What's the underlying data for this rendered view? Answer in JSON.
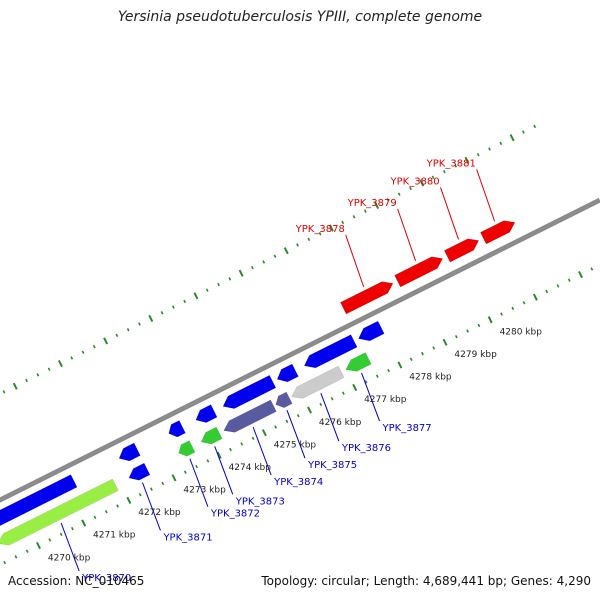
{
  "title": "Yersinia pseudotuberculosis YPIII, complete genome",
  "footer": {
    "accession": "Accession: NC_010465",
    "stats": "Topology: circular; Length: 4,689,441 bp; Genes: 4,290"
  },
  "colors": {
    "forward_strand": "#ee0000",
    "reverse_strand": "#0000ee",
    "green_gene": "#33cc33",
    "lime_gene": "#99ee44",
    "purple_gene": "#5a5aa0",
    "gray_gene": "#cccccc",
    "backbone": "#8c8c8c",
    "ticks": "#2a8a2a",
    "forward_label": "#dd0000",
    "reverse_label": "#0000cc"
  },
  "kbp_ticks": [
    {
      "label": "4270 kbp",
      "kbp": 4270
    },
    {
      "label": "4271 kbp",
      "kbp": 4271
    },
    {
      "label": "4272 kbp",
      "kbp": 4272
    },
    {
      "label": "4273 kbp",
      "kbp": 4273
    },
    {
      "label": "4274 kbp",
      "kbp": 4274
    },
    {
      "label": "4275 kbp",
      "kbp": 4275
    },
    {
      "label": "4276 kbp",
      "kbp": 4276
    },
    {
      "label": "4277 kbp",
      "kbp": 4277
    },
    {
      "label": "4278 kbp",
      "kbp": 4278
    },
    {
      "label": "4279 kbp",
      "kbp": 4279
    },
    {
      "label": "4280 kbp",
      "kbp": 4280
    }
  ],
  "genes": [
    {
      "name": "YPK_3870",
      "strand": "reverse",
      "color_key": "lime_gene",
      "start_kbp": 4269.3,
      "end_kbp": 4271.9
    },
    {
      "name": "YPK_3871",
      "strand": "reverse",
      "color_key": "reverse_strand",
      "start_kbp": 4272.2,
      "end_kbp": 4272.6
    },
    {
      "name": "YPK_3872",
      "strand": "reverse",
      "color_key": "green_gene",
      "start_kbp": 4273.3,
      "end_kbp": 4273.6
    },
    {
      "name": "YPK_3873",
      "strand": "reverse",
      "color_key": "green_gene",
      "start_kbp": 4273.8,
      "end_kbp": 4274.2
    },
    {
      "name": "YPK_3874",
      "strand": "reverse",
      "color_key": "purple_gene",
      "start_kbp": 4274.3,
      "end_kbp": 4275.4
    },
    {
      "name": "YPK_3875",
      "strand": "reverse",
      "color_key": "purple_gene",
      "start_kbp": 4275.45,
      "end_kbp": 4275.75
    },
    {
      "name": "YPK_3876",
      "strand": "reverse",
      "color_key": "gray_gene",
      "start_kbp": 4275.8,
      "end_kbp": 4276.9
    },
    {
      "name": "YPK_3877",
      "strand": "reverse",
      "color_key": "green_gene",
      "start_kbp": 4277.0,
      "end_kbp": 4277.5
    },
    {
      "name": "YPK_3878",
      "strand": "forward",
      "color_key": "forward_strand",
      "start_kbp": 4277.5,
      "end_kbp": 4278.6
    },
    {
      "name": "YPK_3879",
      "strand": "forward",
      "color_key": "forward_strand",
      "start_kbp": 4278.7,
      "end_kbp": 4279.7
    },
    {
      "name": "YPK_3880",
      "strand": "forward",
      "color_key": "forward_strand",
      "start_kbp": 4279.8,
      "end_kbp": 4280.5
    },
    {
      "name": "YPK_3881",
      "strand": "forward",
      "color_key": "forward_strand",
      "start_kbp": 4280.6,
      "end_kbp": 4281.3
    }
  ]
}
